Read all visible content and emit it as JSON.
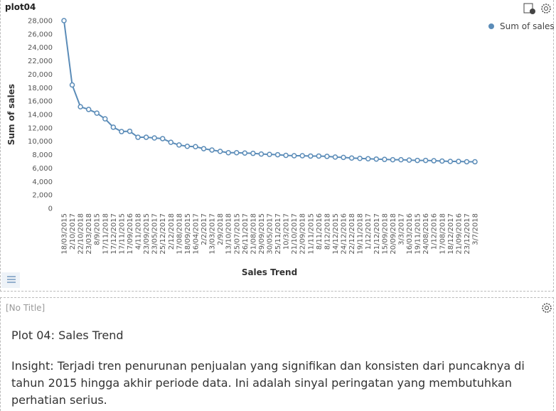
{
  "panel_title": "plot04",
  "chart_data": {
    "type": "line",
    "xlabel": "Sales Trend",
    "ylabel": "Sum of sales",
    "categories": [
      "18/03/2015",
      "2/10/2017",
      "22/10/2018",
      "23/03/2018",
      "8/9/2015",
      "17/11/2018",
      "17/12/2017",
      "17/11/2015",
      "17/09/2016",
      "4/11/2018",
      "23/09/2015",
      "23/05/2017",
      "25/12/2017",
      "2/12/2018",
      "17/08/2018",
      "18/09/2015",
      "16/04/2017",
      "2/2/2017",
      "13/03/2017",
      "2/9/2018",
      "13/10/2018",
      "25/07/2015",
      "26/11/2017",
      "21/08/2018",
      "29/09/2015",
      "30/05/2017",
      "25/11/2017",
      "10/3/2017",
      "21/10/2017",
      "22/09/2018",
      "11/11/2015",
      "8/11/2016",
      "8/12/2018",
      "14/12/2015",
      "24/12/2016",
      "22/12/2018",
      "19/11/2018",
      "1/12/2017",
      "21/12/2017",
      "15/09/2018",
      "20/09/2018",
      "3/3/2017",
      "16/03/2016",
      "19/11/2015",
      "24/08/2016",
      "1/12/2016",
      "17/08/2018",
      "18/12/2017",
      "21/09/2016",
      "23/12/2017",
      "3/7/2018"
    ],
    "series": [
      {
        "name": "Sum of sales",
        "color": "#5b8cb8",
        "values": [
          28000,
          18400,
          15150,
          14750,
          14200,
          13350,
          12100,
          11450,
          11500,
          10600,
          10600,
          10500,
          10400,
          9850,
          9450,
          9250,
          9200,
          8900,
          8700,
          8500,
          8300,
          8300,
          8250,
          8200,
          8100,
          8050,
          8000,
          7900,
          7850,
          7850,
          7800,
          7800,
          7750,
          7650,
          7600,
          7500,
          7450,
          7400,
          7350,
          7300,
          7250,
          7250,
          7200,
          7150,
          7150,
          7100,
          7050,
          7000,
          7000,
          6950,
          6950
        ]
      }
    ],
    "ylim": [
      0,
      28000
    ],
    "yticks": [
      0,
      {
        "value": 2000,
        "label": "2,000"
      },
      {
        "value": 4000,
        "label": "4,000"
      },
      {
        "value": 6000,
        "label": "6,000"
      },
      {
        "value": 8000,
        "label": "8,000"
      },
      {
        "value": 10000,
        "label": "10,000"
      },
      {
        "value": 12000,
        "label": "12,000"
      },
      {
        "value": 14000,
        "label": "14,000"
      },
      {
        "value": 16000,
        "label": "16,000"
      },
      {
        "value": 18000,
        "label": "18,000"
      },
      {
        "value": 20000,
        "label": "20,000"
      },
      {
        "value": 22000,
        "label": "22,000"
      },
      {
        "value": 24000,
        "label": "24,000"
      },
      {
        "value": 26000,
        "label": "26,000"
      },
      {
        "value": 28000,
        "label": "28,000"
      }
    ],
    "legend": "top-right"
  },
  "text_panel": {
    "title": "[No Title]",
    "heading": "Plot 04: Sales Trend",
    "body": "Insight: Terjadi tren penurunan penjualan yang signifikan dan konsisten dari puncaknya di tahun 2015 hingga akhir periode data. Ini adalah sinyal peringatan yang membutuhkan perhatian serius."
  }
}
